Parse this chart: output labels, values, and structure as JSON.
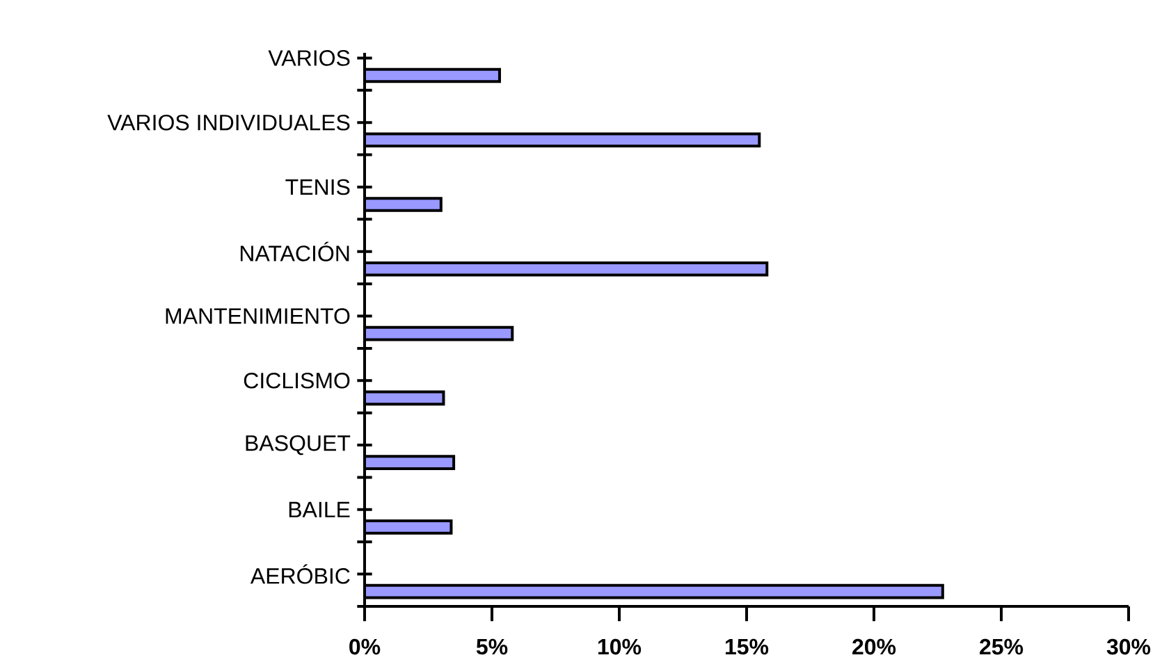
{
  "chart_data": {
    "type": "bar",
    "orientation": "horizontal",
    "categories": [
      "VARIOS",
      "VARIOS INDIVIDUALES",
      "TENIS",
      "NATACIÓN",
      "MANTENIMIENTO",
      "CICLISMO",
      "BASQUET",
      "BAILE",
      "AERÓBIC"
    ],
    "values": [
      5.3,
      15.5,
      3.0,
      15.8,
      5.8,
      3.1,
      3.5,
      3.4,
      22.7
    ],
    "color": "#9999ff",
    "xlim": [
      0,
      30
    ],
    "xticks": [
      {
        "value": 0,
        "label": "0%"
      },
      {
        "value": 5,
        "label": "5%"
      },
      {
        "value": 10,
        "label": "10%"
      },
      {
        "value": 15,
        "label": "15%"
      },
      {
        "value": 20,
        "label": "20%"
      },
      {
        "value": 25,
        "label": "25%"
      },
      {
        "value": 30,
        "label": "30%"
      }
    ]
  }
}
